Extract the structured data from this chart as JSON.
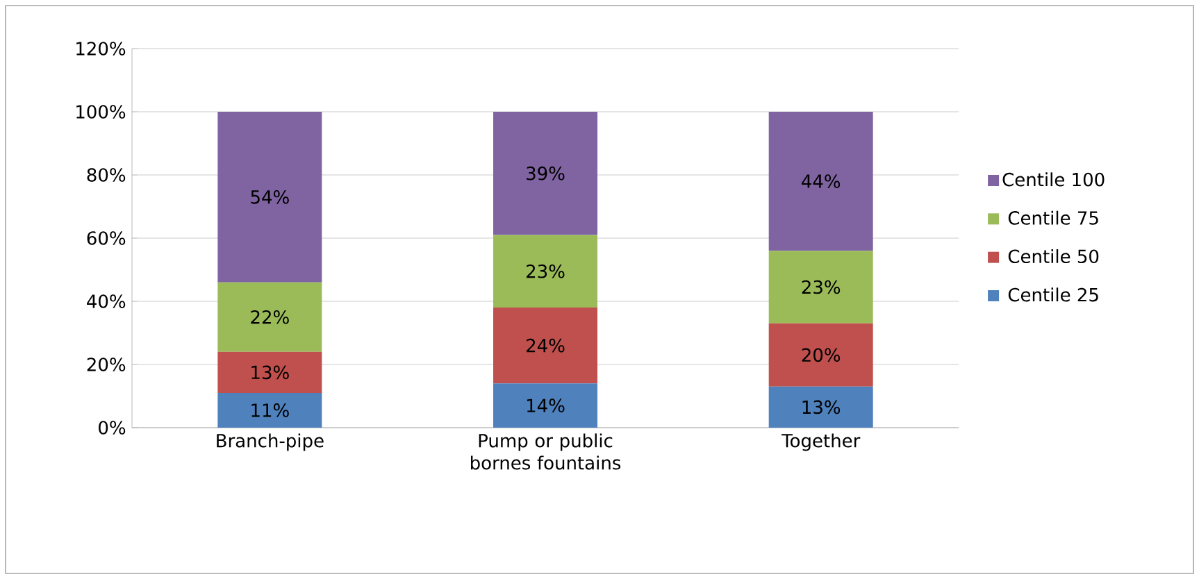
{
  "chart_data": {
    "type": "bar",
    "stacked": true,
    "categories": [
      "Branch-pipe",
      "Pump or public bornes fountains",
      "Together"
    ],
    "series": [
      {
        "name": "Centile 25",
        "color": "#4f81bd",
        "values": [
          11,
          14,
          13
        ],
        "value_labels": [
          "11%",
          "14%",
          "13%"
        ]
      },
      {
        "name": "Centile 50",
        "color": "#c0504d",
        "values": [
          13,
          24,
          20
        ],
        "value_labels": [
          "13%",
          "24%",
          "20%"
        ]
      },
      {
        "name": "Centile 75",
        "color": "#9bbb59",
        "values": [
          22,
          23,
          23
        ],
        "value_labels": [
          "22%",
          "23%",
          "23%"
        ]
      },
      {
        "name": "Centile 100",
        "color": "#8064a2",
        "values": [
          54,
          39,
          44
        ],
        "value_labels": [
          "54%",
          "39%",
          "44%"
        ]
      }
    ],
    "ylim": [
      0,
      120
    ],
    "yticks": [
      {
        "value": 0,
        "label": "0%"
      },
      {
        "value": 20,
        "label": "20%"
      },
      {
        "value": 40,
        "label": "40%"
      },
      {
        "value": 60,
        "label": "60%"
      },
      {
        "value": 80,
        "label": "80%"
      },
      {
        "value": 100,
        "label": "100%"
      },
      {
        "value": 120,
        "label": "120%"
      }
    ],
    "grid": "y",
    "legend": "right"
  }
}
